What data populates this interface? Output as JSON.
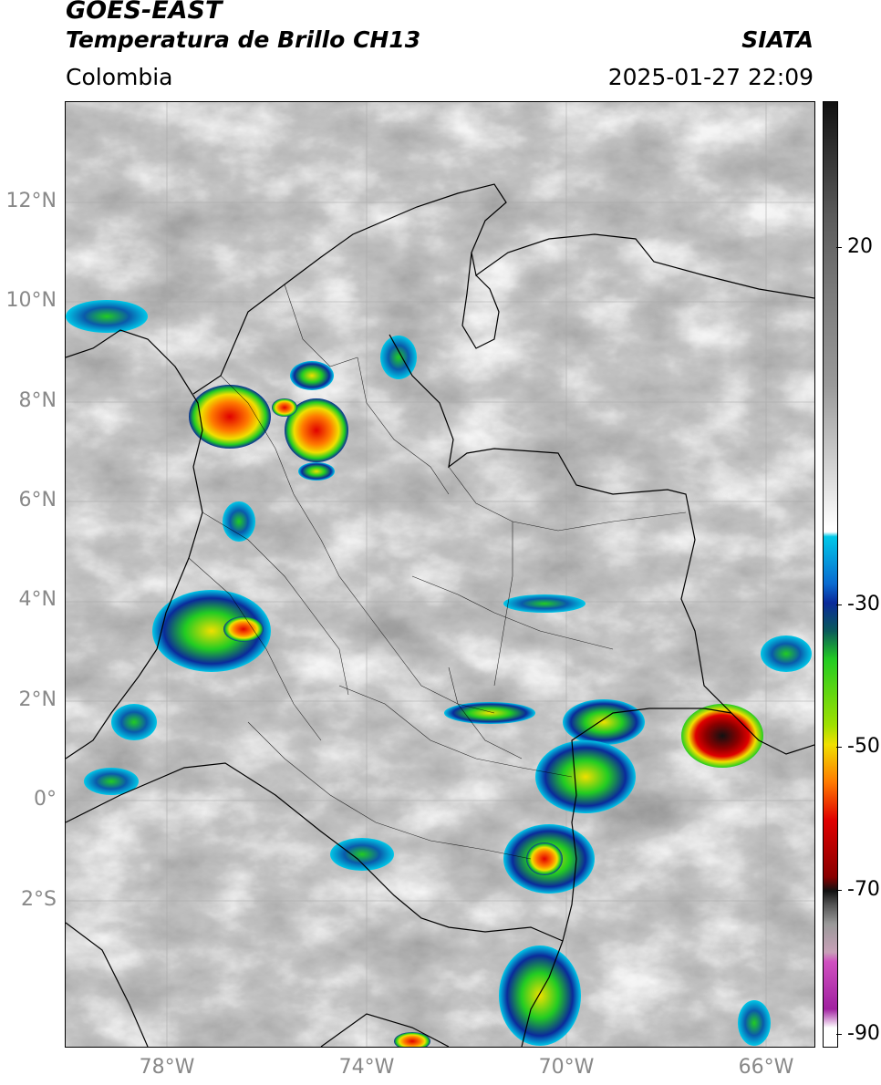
{
  "header": {
    "satellite": "GOES-EAST",
    "product": "Temperatura de Brillo CH13",
    "brand": "SIATA",
    "region": "Colombia",
    "timestamp": "2025-01-27 22:09"
  },
  "map": {
    "lat_labels": [
      "12°N",
      "10°N",
      "8°N",
      "6°N",
      "4°N",
      "2°N",
      "0°",
      "2°S"
    ],
    "lon_labels": [
      "78°W",
      "74°W",
      "70°W",
      "66°W"
    ],
    "background_color": "#7a7a7a",
    "gridline_color": "#a0a0a0"
  },
  "colorbar": {
    "labels": [
      "20",
      "-30",
      "-50",
      "-70",
      "-90"
    ],
    "colors": {
      "warm_gray": "#6e6e6e",
      "white": "#ffffff",
      "cyan": "#00c8e8",
      "blue": "#0a2a9a",
      "green": "#22cc22",
      "yellow": "#f0e000",
      "red": "#e00000",
      "black": "#111111",
      "magenta": "#d050c0"
    }
  }
}
